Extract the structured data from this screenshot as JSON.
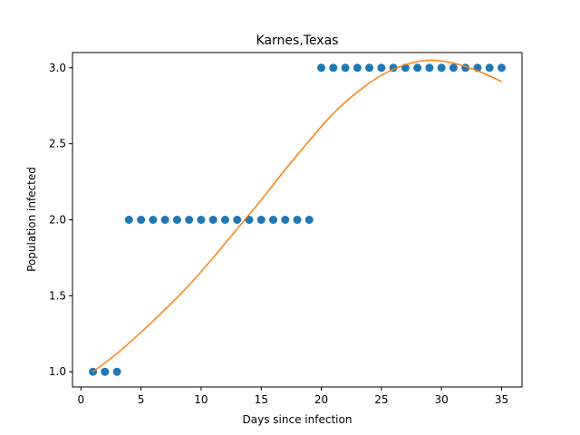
{
  "chart_data": {
    "type": "scatter",
    "title": "Karnes,Texas",
    "xlabel": "Days since infection",
    "ylabel": "Population infected",
    "xlim": [
      -0.7,
      36.7
    ],
    "ylim": [
      0.9,
      3.1
    ],
    "xticks": [
      0,
      5,
      10,
      15,
      20,
      25,
      30,
      35
    ],
    "yticks": [
      1.0,
      1.5,
      2.0,
      2.5,
      3.0
    ],
    "xtick_labels": [
      "0",
      "5",
      "10",
      "15",
      "20",
      "25",
      "30",
      "35"
    ],
    "ytick_labels": [
      "1.0",
      "1.5",
      "2.0",
      "2.5",
      "3.0"
    ],
    "grid": false,
    "series": [
      {
        "type": "scatter",
        "color": "#1f77b4",
        "x": [
          1,
          2,
          3,
          4,
          5,
          6,
          7,
          8,
          9,
          10,
          11,
          12,
          13,
          14,
          15,
          16,
          17,
          18,
          19,
          20,
          21,
          22,
          23,
          24,
          25,
          26,
          27,
          28,
          29,
          30,
          31,
          32,
          33,
          34,
          35
        ],
        "y": [
          1,
          1,
          1,
          2,
          2,
          2,
          2,
          2,
          2,
          2,
          2,
          2,
          2,
          2,
          2,
          2,
          2,
          2,
          2,
          3,
          3,
          3,
          3,
          3,
          3,
          3,
          3,
          3,
          3,
          3,
          3,
          3,
          3,
          3,
          3
        ]
      },
      {
        "type": "line",
        "color": "#ff7f0e",
        "x": [
          1,
          3,
          5,
          7,
          9,
          11,
          13,
          15,
          17,
          19,
          21,
          23,
          25,
          27,
          29,
          31,
          33,
          35
        ],
        "y": [
          1.0,
          1.12,
          1.26,
          1.41,
          1.57,
          1.75,
          1.94,
          2.13,
          2.33,
          2.52,
          2.7,
          2.84,
          2.95,
          3.02,
          3.05,
          3.03,
          2.98,
          2.91
        ]
      }
    ]
  }
}
